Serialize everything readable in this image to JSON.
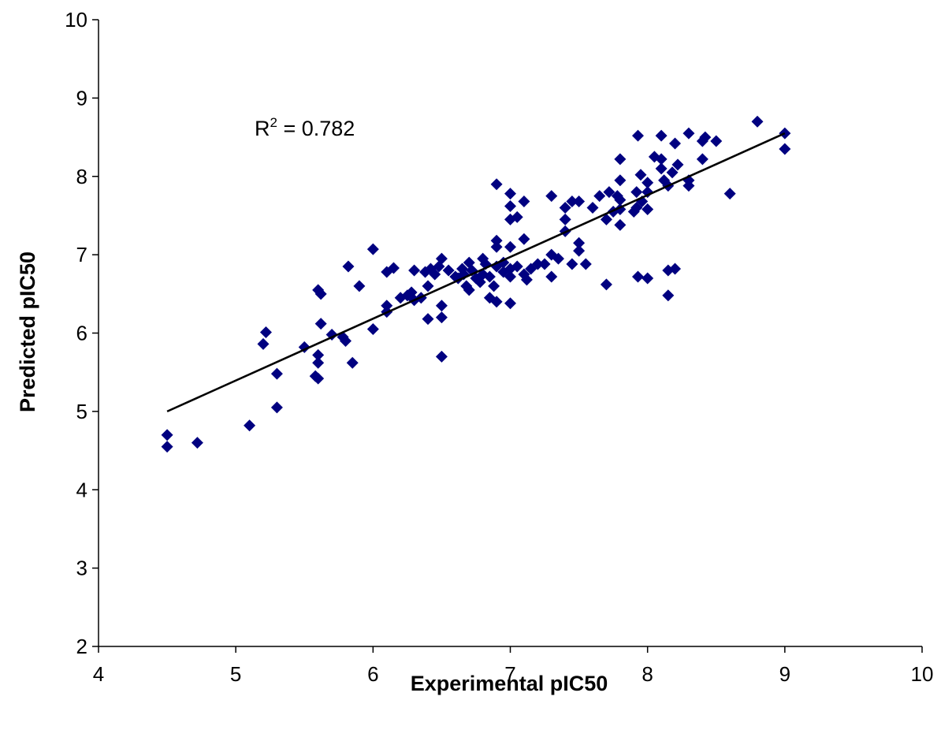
{
  "chart_data": {
    "type": "scatter",
    "title": "",
    "xlabel": "Experimental pIC50",
    "ylabel": "Predicted pIC50",
    "xlim": [
      4,
      10
    ],
    "ylim": [
      2,
      10
    ],
    "xticks": [
      "4",
      "5",
      "6",
      "7",
      "8",
      "9",
      "10"
    ],
    "yticks": [
      "2",
      "3",
      "4",
      "5",
      "6",
      "7",
      "8",
      "9",
      "10"
    ],
    "grid": false,
    "legend": "none",
    "marker": "diamond",
    "marker_color": "#000080",
    "annotation": {
      "base": "R",
      "sup": "2",
      "text": " = 0.782"
    },
    "trendline": {
      "x": [
        4.5,
        9.0
      ],
      "y": [
        5.0,
        8.55
      ],
      "color": "#000000"
    },
    "series": [
      {
        "points": [
          [
            4.5,
            4.7
          ],
          [
            4.5,
            4.55
          ],
          [
            4.72,
            4.6
          ],
          [
            5.1,
            4.82
          ],
          [
            5.3,
            5.05
          ],
          [
            5.3,
            5.48
          ],
          [
            5.2,
            5.86
          ],
          [
            5.22,
            6.01
          ],
          [
            5.5,
            5.82
          ],
          [
            5.58,
            5.45
          ],
          [
            5.6,
            5.42
          ],
          [
            5.6,
            5.62
          ],
          [
            5.6,
            5.72
          ],
          [
            5.6,
            6.55
          ],
          [
            5.62,
            6.5
          ],
          [
            5.62,
            6.12
          ],
          [
            5.7,
            5.98
          ],
          [
            5.78,
            5.95
          ],
          [
            5.8,
            5.9
          ],
          [
            5.85,
            5.62
          ],
          [
            5.82,
            6.85
          ],
          [
            5.9,
            6.6
          ],
          [
            6.0,
            6.05
          ],
          [
            6.0,
            7.07
          ],
          [
            6.1,
            6.27
          ],
          [
            6.1,
            6.35
          ],
          [
            6.1,
            6.78
          ],
          [
            6.15,
            6.83
          ],
          [
            6.2,
            6.45
          ],
          [
            6.25,
            6.48
          ],
          [
            6.28,
            6.52
          ],
          [
            6.3,
            6.42
          ],
          [
            6.3,
            6.8
          ],
          [
            6.35,
            6.45
          ],
          [
            6.38,
            6.78
          ],
          [
            6.4,
            6.6
          ],
          [
            6.4,
            6.18
          ],
          [
            6.42,
            6.82
          ],
          [
            6.45,
            6.75
          ],
          [
            6.48,
            6.85
          ],
          [
            6.5,
            6.95
          ],
          [
            6.5,
            5.7
          ],
          [
            6.5,
            6.35
          ],
          [
            6.5,
            6.2
          ],
          [
            6.55,
            6.8
          ],
          [
            6.6,
            6.72
          ],
          [
            6.62,
            6.7
          ],
          [
            6.65,
            6.82
          ],
          [
            6.66,
            6.75
          ],
          [
            6.68,
            6.6
          ],
          [
            6.7,
            6.55
          ],
          [
            6.7,
            6.9
          ],
          [
            6.72,
            6.8
          ],
          [
            6.75,
            6.7
          ],
          [
            6.78,
            6.65
          ],
          [
            6.8,
            6.75
          ],
          [
            6.8,
            6.95
          ],
          [
            6.82,
            6.88
          ],
          [
            6.85,
            6.72
          ],
          [
            6.85,
            6.45
          ],
          [
            6.88,
            6.6
          ],
          [
            6.9,
            6.4
          ],
          [
            6.9,
            6.85
          ],
          [
            6.9,
            7.1
          ],
          [
            6.9,
            7.18
          ],
          [
            6.9,
            7.9
          ],
          [
            6.95,
            6.78
          ],
          [
            6.95,
            6.9
          ],
          [
            7.0,
            6.82
          ],
          [
            7.0,
            6.72
          ],
          [
            7.0,
            6.38
          ],
          [
            7.0,
            7.1
          ],
          [
            7.0,
            7.45
          ],
          [
            7.0,
            7.62
          ],
          [
            7.0,
            7.78
          ],
          [
            7.05,
            6.85
          ],
          [
            7.05,
            7.48
          ],
          [
            7.1,
            6.75
          ],
          [
            7.1,
            7.2
          ],
          [
            7.1,
            7.68
          ],
          [
            7.12,
            6.68
          ],
          [
            7.15,
            6.82
          ],
          [
            7.2,
            6.88
          ],
          [
            7.25,
            6.88
          ],
          [
            7.3,
            6.72
          ],
          [
            7.3,
            7.0
          ],
          [
            7.3,
            7.75
          ],
          [
            7.35,
            6.95
          ],
          [
            7.4,
            7.3
          ],
          [
            7.4,
            7.45
          ],
          [
            7.4,
            7.6
          ],
          [
            7.45,
            6.88
          ],
          [
            7.45,
            7.68
          ],
          [
            7.5,
            7.05
          ],
          [
            7.5,
            7.15
          ],
          [
            7.5,
            7.68
          ],
          [
            7.55,
            6.88
          ],
          [
            7.6,
            7.6
          ],
          [
            7.65,
            7.75
          ],
          [
            7.7,
            6.62
          ],
          [
            7.7,
            7.45
          ],
          [
            7.72,
            7.8
          ],
          [
            7.75,
            7.55
          ],
          [
            7.78,
            7.75
          ],
          [
            7.8,
            7.38
          ],
          [
            7.8,
            7.58
          ],
          [
            7.8,
            7.7
          ],
          [
            7.8,
            7.95
          ],
          [
            7.8,
            8.22
          ],
          [
            7.9,
            7.55
          ],
          [
            7.92,
            7.6
          ],
          [
            7.92,
            7.8
          ],
          [
            7.93,
            6.72
          ],
          [
            7.93,
            8.52
          ],
          [
            7.95,
            8.02
          ],
          [
            7.96,
            7.68
          ],
          [
            8.0,
            7.58
          ],
          [
            8.0,
            7.8
          ],
          [
            8.0,
            7.92
          ],
          [
            8.0,
            6.7
          ],
          [
            8.05,
            8.25
          ],
          [
            8.1,
            8.1
          ],
          [
            8.1,
            8.22
          ],
          [
            8.1,
            8.52
          ],
          [
            8.12,
            7.95
          ],
          [
            8.15,
            6.48
          ],
          [
            8.15,
            6.8
          ],
          [
            8.15,
            7.88
          ],
          [
            8.18,
            8.05
          ],
          [
            8.2,
            6.82
          ],
          [
            8.2,
            8.42
          ],
          [
            8.22,
            8.15
          ],
          [
            8.3,
            7.88
          ],
          [
            8.3,
            7.95
          ],
          [
            8.3,
            8.55
          ],
          [
            8.4,
            8.22
          ],
          [
            8.4,
            8.45
          ],
          [
            8.42,
            8.5
          ],
          [
            8.5,
            8.45
          ],
          [
            8.6,
            7.78
          ],
          [
            8.8,
            8.7
          ],
          [
            9.0,
            8.55
          ],
          [
            9.0,
            8.35
          ]
        ]
      }
    ]
  }
}
